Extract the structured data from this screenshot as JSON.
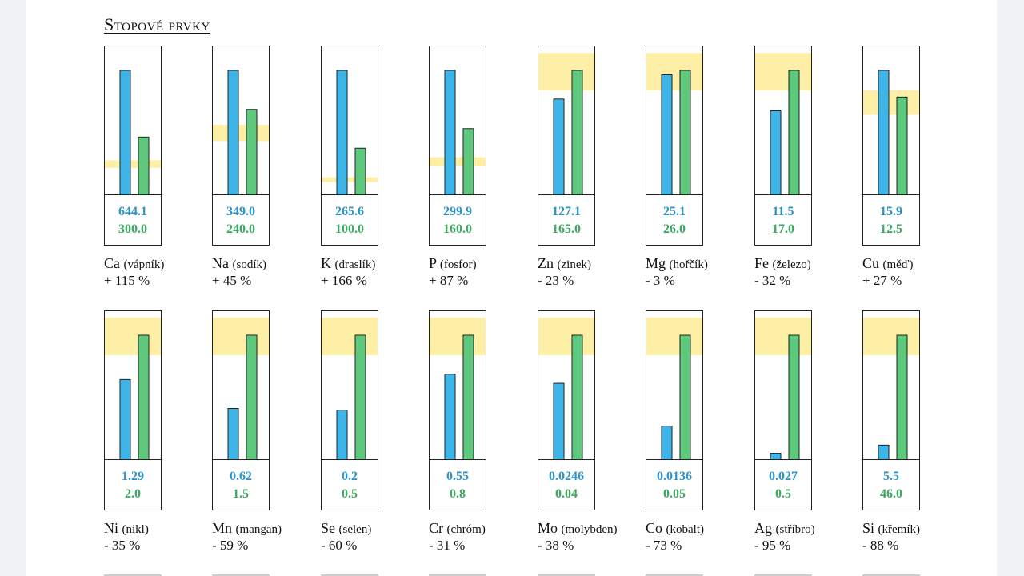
{
  "section": {
    "title": "Stopové prvky"
  },
  "colors": {
    "measured": "#3db5e8",
    "reference": "#5ec97c",
    "range": "#fdf0a6"
  },
  "legend_meaning": {
    "measured_series_color": "blue",
    "reference_series_color": "green",
    "range_band_color": "yellow"
  },
  "chart_data": {
    "type": "bar",
    "panels": [
      {
        "symbol": "Ca",
        "name": "(vápník)",
        "measured_label": "644.1",
        "reference_label": "300.0",
        "delta": "+ 115 %",
        "measured": 644.1,
        "reference": 300.0,
        "range_fraction": [
          0.47,
          0.6
        ]
      },
      {
        "symbol": "Na",
        "name": "(sodík)",
        "measured_label": "349.0",
        "reference_label": "240.0",
        "delta": "+ 45 %",
        "measured": 349.0,
        "reference": 240.0,
        "range_fraction": [
          0.63,
          0.82
        ]
      },
      {
        "symbol": "K",
        "name": "(draslík)",
        "measured_label": "265.6",
        "reference_label": "100.0",
        "delta": "+ 166 %",
        "measured": 265.6,
        "reference": 100.0,
        "range_fraction": [
          0.28,
          0.38
        ]
      },
      {
        "symbol": "P",
        "name": "(fosfor)",
        "measured_label": "299.9",
        "reference_label": "160.0",
        "delta": "+ 87 %",
        "measured": 299.9,
        "reference": 160.0,
        "range_fraction": [
          0.43,
          0.57
        ]
      },
      {
        "symbol": "Zn",
        "name": "(zinek)",
        "measured_label": "127.1",
        "reference_label": "165.0",
        "delta": "- 23 %",
        "measured": 127.1,
        "reference": 165.0,
        "range_fraction": [
          0.84,
          1.14
        ]
      },
      {
        "symbol": "Mg",
        "name": "(hořčík)",
        "measured_label": "25.1",
        "reference_label": "26.0",
        "delta": "- 3 %",
        "measured": 25.1,
        "reference": 26.0,
        "range_fraction": [
          0.84,
          1.14
        ]
      },
      {
        "symbol": "Fe",
        "name": "(železo)",
        "measured_label": "11.5",
        "reference_label": "17.0",
        "delta": "- 32 %",
        "measured": 11.5,
        "reference": 17.0,
        "range_fraction": [
          0.84,
          1.14
        ]
      },
      {
        "symbol": "Cu",
        "name": "(měď)",
        "measured_label": "15.9",
        "reference_label": "12.5",
        "delta": "+ 27 %",
        "measured": 15.9,
        "reference": 12.5,
        "range_fraction": [
          0.82,
          1.07
        ]
      },
      {
        "symbol": "Ni",
        "name": "(nikl)",
        "measured_label": "1.29",
        "reference_label": "2.0",
        "delta": "- 35 %",
        "measured": 1.29,
        "reference": 2.0,
        "range_fraction": [
          0.84,
          1.14
        ]
      },
      {
        "symbol": "Mn",
        "name": "(mangan)",
        "measured_label": "0.62",
        "reference_label": "1.5",
        "delta": "- 59 %",
        "measured": 0.62,
        "reference": 1.5,
        "range_fraction": [
          0.84,
          1.14
        ]
      },
      {
        "symbol": "Se",
        "name": "(selen)",
        "measured_label": "0.2",
        "reference_label": "0.5",
        "delta": "- 60 %",
        "measured": 0.2,
        "reference": 0.5,
        "range_fraction": [
          0.84,
          1.14
        ]
      },
      {
        "symbol": "Cr",
        "name": "(chróm)",
        "measured_label": "0.55",
        "reference_label": "0.8",
        "delta": "- 31 %",
        "measured": 0.55,
        "reference": 0.8,
        "range_fraction": [
          0.84,
          1.14
        ]
      },
      {
        "symbol": "Mo",
        "name": "(molybden)",
        "measured_label": "0.0246",
        "reference_label": "0.04",
        "delta": "- 38 %",
        "measured": 0.0246,
        "reference": 0.04,
        "range_fraction": [
          0.84,
          1.14
        ]
      },
      {
        "symbol": "Co",
        "name": "(kobalt)",
        "measured_label": "0.0136",
        "reference_label": "0.05",
        "delta": "- 73 %",
        "measured": 0.0136,
        "reference": 0.05,
        "range_fraction": [
          0.84,
          1.14
        ]
      },
      {
        "symbol": "Ag",
        "name": "(stříbro)",
        "measured_label": "0.027",
        "reference_label": "0.5",
        "delta": "- 95 %",
        "measured": 0.027,
        "reference": 0.5,
        "range_fraction": [
          0.84,
          1.14
        ]
      },
      {
        "symbol": "Si",
        "name": "(křemík)",
        "measured_label": "5.5",
        "reference_label": "46.0",
        "delta": "- 88 %",
        "measured": 5.5,
        "reference": 46.0,
        "range_fraction": [
          0.84,
          1.14
        ]
      }
    ]
  }
}
